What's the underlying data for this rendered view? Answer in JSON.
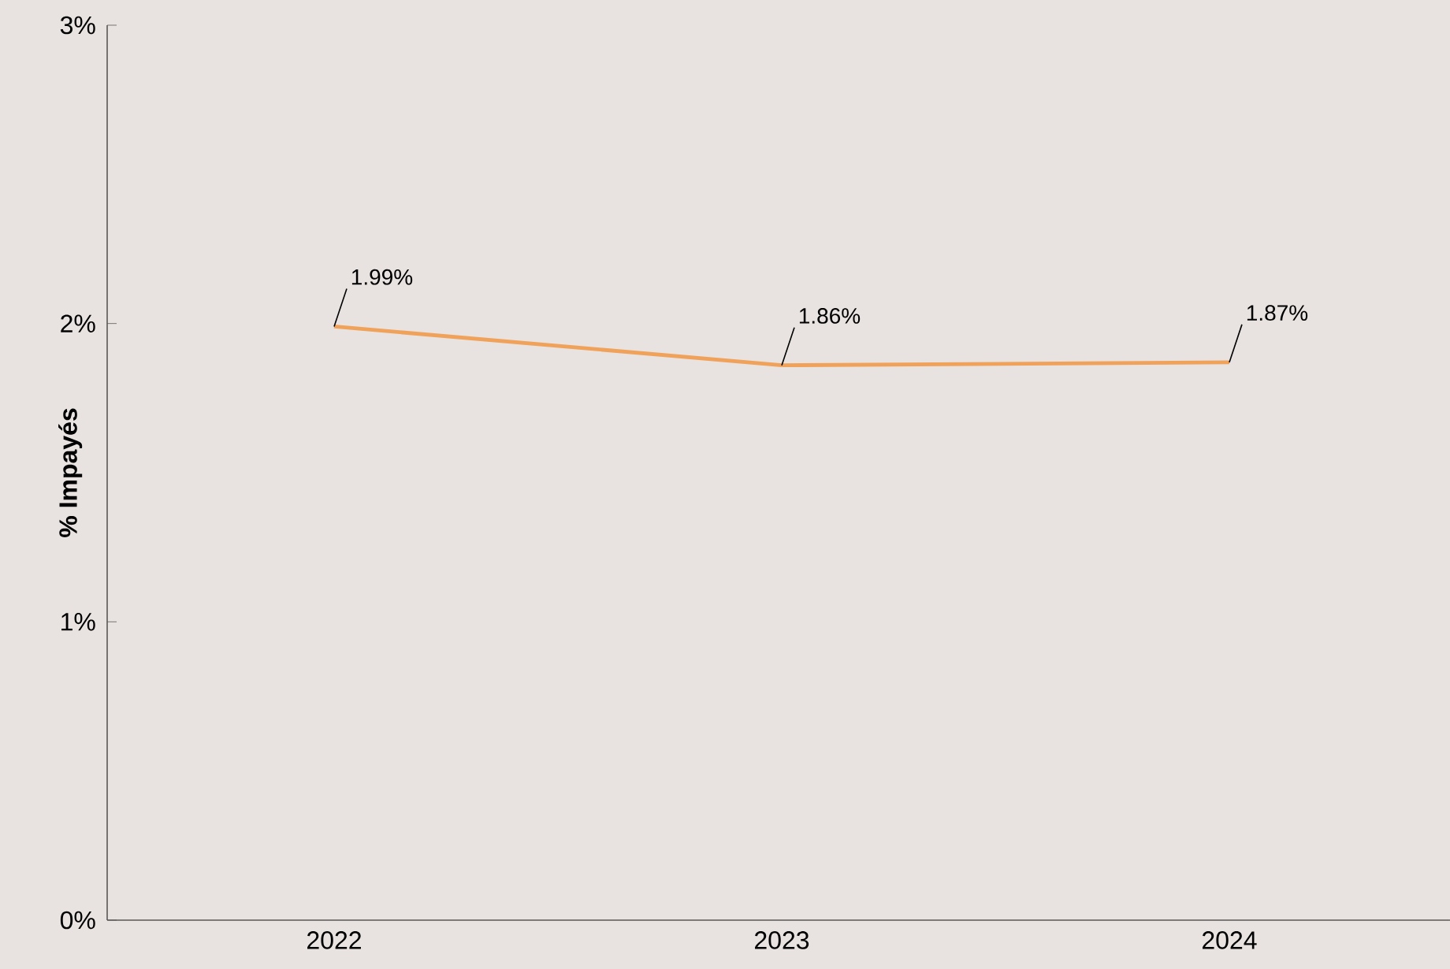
{
  "chart_data": {
    "type": "line",
    "ylabel": "% Impayés",
    "categories": [
      "2022",
      "2023",
      "2024"
    ],
    "values": [
      1.99,
      1.86,
      1.87
    ],
    "value_labels": [
      "1.99%",
      "1.86%",
      "1.87%"
    ],
    "color": "#f0a25a",
    "ylim": [
      0,
      3
    ],
    "yticks": [
      {
        "value": 0,
        "label": "0%"
      },
      {
        "value": 1,
        "label": "1%"
      },
      {
        "value": 2,
        "label": "2%"
      },
      {
        "value": 3,
        "label": "3%"
      }
    ],
    "grid": false,
    "legend": false,
    "marker": "none",
    "line_style": "solid"
  }
}
